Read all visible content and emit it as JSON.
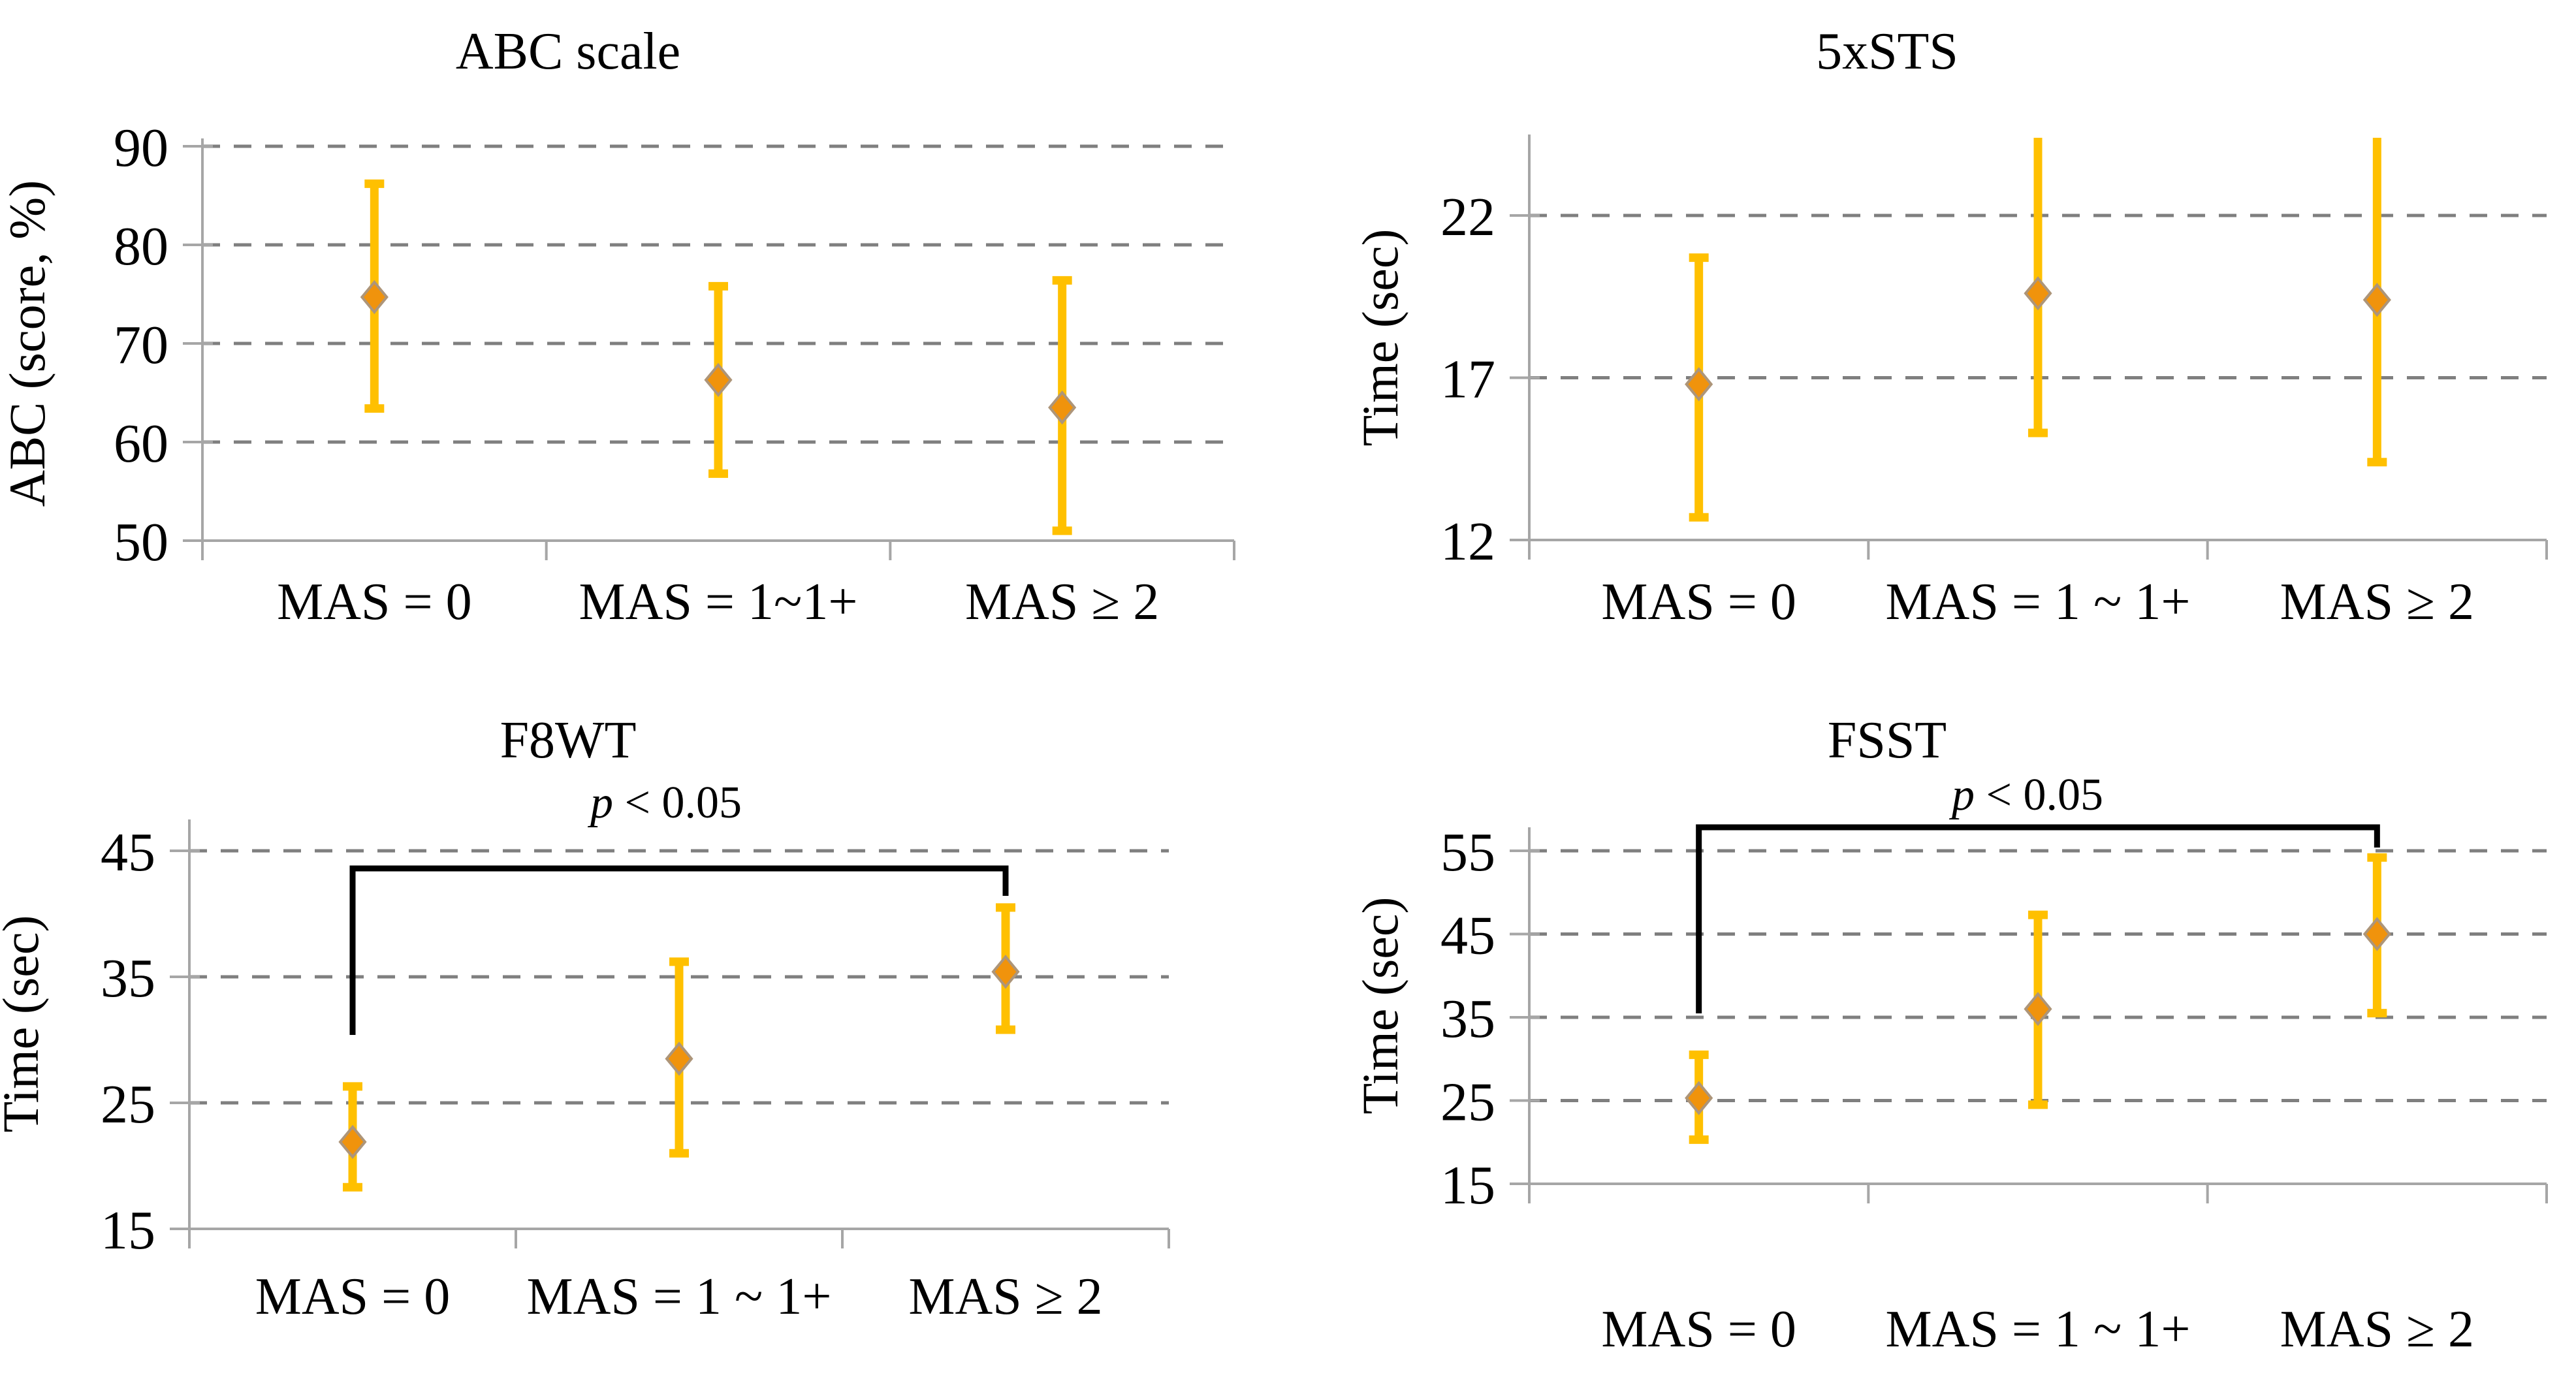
{
  "figure": {
    "description": "2x2 panel of mean/error-bar plots comparing MAS spasticity groups",
    "background": "#ffffff"
  },
  "colors": {
    "error_bar": "#FFC000",
    "marker_fill": "#F0930C",
    "marker_stroke": "#AD9579",
    "gridline": "#7F7F7F",
    "axis": "#A6A6A6",
    "bracket": "#000000",
    "text": "#000000"
  },
  "chart_data": [
    {
      "type": "scatter",
      "subtype": "mean-error-bar",
      "title": "ABC scale",
      "xlabel": "",
      "ylabel": "ABC (score, %)",
      "categories": [
        "MAS = 0",
        "MAS = 1~1+",
        "MAS ≥ 2"
      ],
      "yticks": [
        50,
        60,
        70,
        80,
        90
      ],
      "gridlines": [
        60,
        70,
        80,
        90
      ],
      "ylim": [
        50,
        91
      ],
      "grid": "dashed-horizontal",
      "legend": false,
      "series": [
        {
          "name": "mean",
          "values": [
            74.7,
            66.3,
            63.5
          ]
        },
        {
          "name": "upper",
          "values": [
            86.2,
            75.8,
            76.4
          ]
        },
        {
          "name": "lower",
          "values": [
            63.4,
            56.8,
            51.0
          ]
        }
      ],
      "clipped_upper": [
        false,
        false,
        false
      ],
      "annotation": null
    },
    {
      "type": "scatter",
      "subtype": "mean-error-bar",
      "title": "5xSTS",
      "xlabel": "",
      "ylabel": "Time (sec)",
      "categories": [
        "MAS = 0",
        "MAS = 1 ~ 1+",
        "MAS ≥ 2"
      ],
      "yticks": [
        12,
        17,
        22
      ],
      "gridlines": [
        17,
        22
      ],
      "ylim": [
        12,
        24.5
      ],
      "grid": "dashed-horizontal",
      "legend": false,
      "series": [
        {
          "name": "mean",
          "values": [
            16.8,
            19.6,
            19.4
          ]
        },
        {
          "name": "upper",
          "values": [
            20.7,
            24.4,
            24.4
          ]
        },
        {
          "name": "lower",
          "values": [
            12.7,
            15.3,
            14.4
          ]
        }
      ],
      "clipped_upper": [
        false,
        true,
        true
      ],
      "annotation": null
    },
    {
      "type": "scatter",
      "subtype": "mean-error-bar",
      "title": "F8WT",
      "xlabel": "",
      "ylabel": "Time (sec)",
      "categories": [
        "MAS = 0",
        "MAS = 1 ~ 1+",
        "MAS ≥ 2"
      ],
      "yticks": [
        15,
        25,
        35,
        45
      ],
      "gridlines": [
        25,
        35,
        45
      ],
      "ylim": [
        15,
        47.5
      ],
      "grid": "dashed-horizontal",
      "legend": false,
      "series": [
        {
          "name": "mean",
          "values": [
            21.9,
            28.5,
            35.4
          ]
        },
        {
          "name": "upper",
          "values": [
            26.3,
            36.2,
            40.5
          ]
        },
        {
          "name": "lower",
          "values": [
            18.3,
            21.0,
            30.8
          ]
        }
      ],
      "clipped_upper": [
        false,
        false,
        false
      ],
      "annotation": {
        "text": "p < 0.05",
        "from_category": "MAS = 0",
        "to_category": "MAS ≥ 2"
      }
    },
    {
      "type": "scatter",
      "subtype": "mean-error-bar",
      "title": "FSST",
      "xlabel": "",
      "ylabel": "Time (sec)",
      "categories": [
        "MAS = 0",
        "MAS = 1 ~ 1+",
        "MAS ≥ 2"
      ],
      "yticks": [
        15,
        25,
        35,
        45,
        55
      ],
      "gridlines": [
        25,
        35,
        45,
        55
      ],
      "ylim": [
        15,
        57.8
      ],
      "grid": "dashed-horizontal",
      "legend": false,
      "series": [
        {
          "name": "mean",
          "values": [
            25.3,
            36.0,
            45.0
          ]
        },
        {
          "name": "upper",
          "values": [
            30.5,
            47.3,
            54.2
          ]
        },
        {
          "name": "lower",
          "values": [
            20.3,
            24.5,
            35.5
          ]
        }
      ],
      "clipped_upper": [
        false,
        false,
        false
      ],
      "annotation": {
        "text": "p < 0.05",
        "from_category": "MAS = 0",
        "to_category": "MAS ≥ 2"
      }
    }
  ]
}
